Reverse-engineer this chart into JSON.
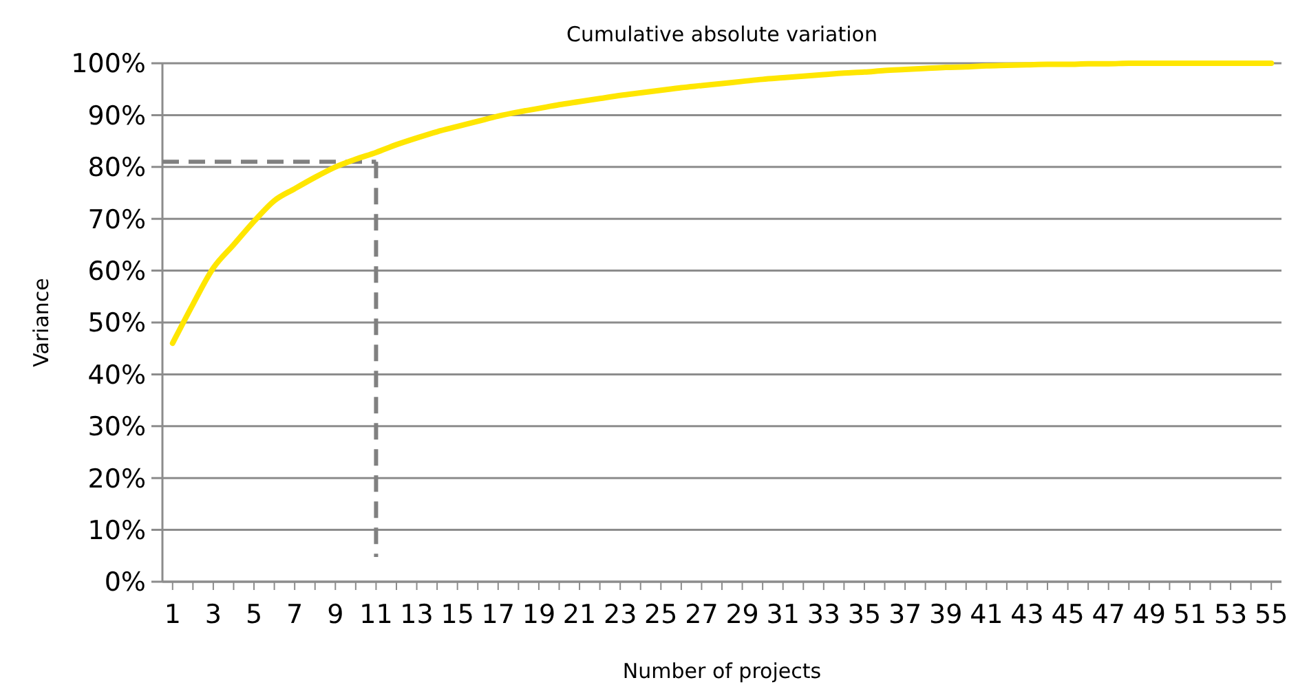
{
  "chart_data": {
    "type": "line",
    "title": "Cumulative absolute variation",
    "xlabel": "Number of projects",
    "ylabel": "Variance",
    "x": [
      1,
      2,
      3,
      4,
      5,
      6,
      7,
      8,
      9,
      10,
      11,
      12,
      13,
      14,
      15,
      16,
      17,
      18,
      19,
      20,
      21,
      22,
      23,
      24,
      25,
      26,
      27,
      28,
      29,
      30,
      31,
      32,
      33,
      34,
      35,
      36,
      37,
      38,
      39,
      40,
      41,
      42,
      43,
      44,
      45,
      46,
      47,
      48,
      49,
      50,
      51,
      52,
      53,
      54,
      55
    ],
    "xlim": [
      0.5,
      55.5
    ],
    "xticks": [
      1,
      3,
      5,
      7,
      9,
      11,
      13,
      15,
      17,
      19,
      21,
      23,
      25,
      27,
      29,
      31,
      33,
      35,
      37,
      39,
      41,
      43,
      45,
      47,
      49,
      51,
      53,
      55
    ],
    "series": [
      {
        "color": "#ffe600",
        "values": [
          46,
          53.5,
          60.5,
          65,
          69.5,
          73.5,
          75.8,
          78,
          80,
          81.5,
          82.8,
          84.3,
          85.6,
          86.8,
          87.8,
          88.8,
          89.8,
          90.6,
          91.3,
          92,
          92.6,
          93.2,
          93.8,
          94.3,
          94.8,
          95.3,
          95.7,
          96.1,
          96.5,
          96.9,
          97.2,
          97.5,
          97.8,
          98.1,
          98.3,
          98.6,
          98.8,
          99,
          99.2,
          99.3,
          99.5,
          99.6,
          99.7,
          99.8,
          99.8,
          99.9,
          99.9,
          100,
          100,
          100,
          100,
          100,
          100,
          100,
          100
        ]
      }
    ],
    "ylim": [
      0,
      100
    ],
    "yticks": [
      {
        "value": 0,
        "label": "0%"
      },
      {
        "value": 10,
        "label": "10%"
      },
      {
        "value": 20,
        "label": "20%"
      },
      {
        "value": 30,
        "label": "30%"
      },
      {
        "value": 40,
        "label": "40%"
      },
      {
        "value": 50,
        "label": "50%"
      },
      {
        "value": 60,
        "label": "60%"
      },
      {
        "value": 70,
        "label": "70%"
      },
      {
        "value": 80,
        "label": "80%"
      },
      {
        "value": 90,
        "label": "90%"
      },
      {
        "value": 100,
        "label": "100%"
      }
    ],
    "grid": "y",
    "marker": "none",
    "line_style": "solid",
    "ref_lines": [
      {
        "axis": "y",
        "value": 81,
        "color": "#808080",
        "line_style": "dashed"
      },
      {
        "axis": "x",
        "value": 11,
        "color": "#808080",
        "line_style": "dashed"
      }
    ]
  }
}
